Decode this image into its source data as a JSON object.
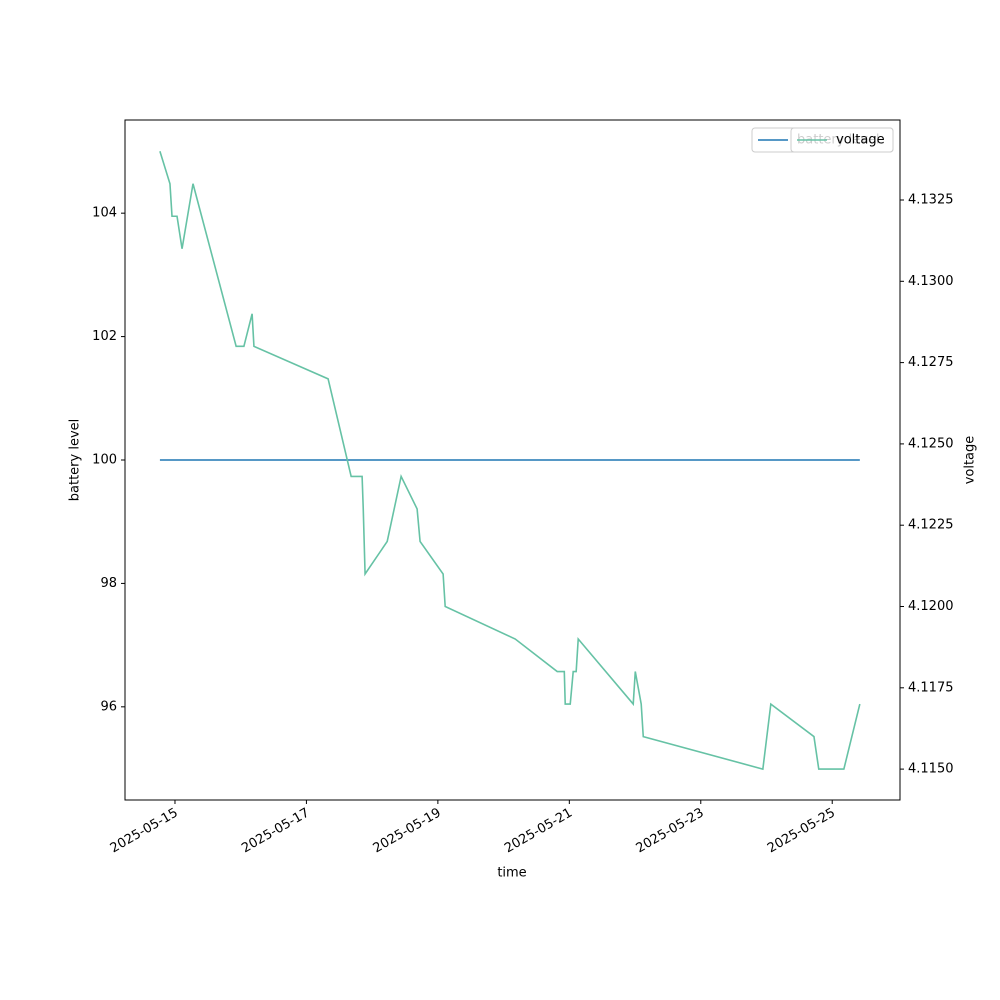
{
  "chart_data": {
    "type": "line",
    "x_label": "time",
    "y_label": "battery level",
    "y2_label": "voltage",
    "x": [
      "2025-05-14T18:30",
      "2025-05-14T22:10",
      "2025-05-14T22:55",
      "2025-05-15T00:45",
      "2025-05-15T02:35",
      "2025-05-15T06:35",
      "2025-05-15T22:20",
      "2025-05-16T01:10",
      "2025-05-16T04:10",
      "2025-05-16T04:50",
      "2025-05-17T07:55",
      "2025-05-17T16:20",
      "2025-05-17T20:20",
      "2025-05-17T20:45",
      "2025-05-17T21:25",
      "2025-05-18T05:30",
      "2025-05-18T10:35",
      "2025-05-18T16:25",
      "2025-05-18T17:30",
      "2025-05-19T01:55",
      "2025-05-19T02:40",
      "2025-05-20T04:15",
      "2025-05-20T19:35",
      "2025-05-20T22:10",
      "2025-05-20T22:30",
      "2025-05-21T00:20",
      "2025-05-21T01:25",
      "2025-05-21T02:30",
      "2025-05-21T03:15",
      "2025-05-21T23:20",
      "2025-05-22T00:05",
      "2025-05-22T02:15",
      "2025-05-22T03:00",
      "2025-05-23T22:40",
      "2025-05-24T01:35",
      "2025-05-24T17:20",
      "2025-05-24T19:05",
      "2025-05-25T04:15",
      "2025-05-25T10:05"
    ],
    "series": [
      {
        "name": "battery level",
        "color": "#1f77b4",
        "values": [
          100,
          100,
          100,
          100,
          100,
          100,
          100,
          100,
          100,
          100,
          100,
          100,
          100,
          100,
          100,
          100,
          100,
          100,
          100,
          100,
          100,
          100,
          100,
          100,
          100,
          100,
          100,
          100,
          100,
          100,
          100,
          100,
          100,
          100,
          100,
          100,
          100,
          100,
          100
        ]
      },
      {
        "name": "voltage",
        "color": "#66c2a5",
        "axis": "y2",
        "values": [
          4.134,
          4.133,
          4.132,
          4.132,
          4.131,
          4.133,
          4.128,
          4.128,
          4.129,
          4.128,
          4.127,
          4.124,
          4.124,
          4.123,
          4.121,
          4.122,
          4.124,
          4.123,
          4.122,
          4.121,
          4.12,
          4.119,
          4.118,
          4.118,
          4.117,
          4.117,
          4.118,
          4.118,
          4.119,
          4.117,
          4.118,
          4.117,
          4.116,
          4.115,
          4.117,
          4.116,
          4.115,
          4.115,
          4.117
        ]
      }
    ],
    "xlim": [
      "2025-05-14T05:45",
      "2025-05-26T00:45"
    ],
    "xticks": [
      "2025-05-15",
      "2025-05-17",
      "2025-05-19",
      "2025-05-21",
      "2025-05-23",
      "2025-05-25"
    ],
    "ylim": [
      94.49,
      105.51
    ],
    "yticks": [
      96,
      98,
      100,
      102,
      104
    ],
    "y2lim": [
      4.11405,
      4.13496
    ],
    "y2ticks": [
      {
        "value": 4.115,
        "label": "4.1150"
      },
      4.1175,
      {
        "value": 4.12,
        "label": "4.1200"
      },
      4.1225,
      {
        "value": 4.125,
        "label": "4.1250"
      },
      4.1275,
      {
        "value": 4.13,
        "label": "4.1300"
      },
      4.1325
    ],
    "legend": "upper right"
  }
}
